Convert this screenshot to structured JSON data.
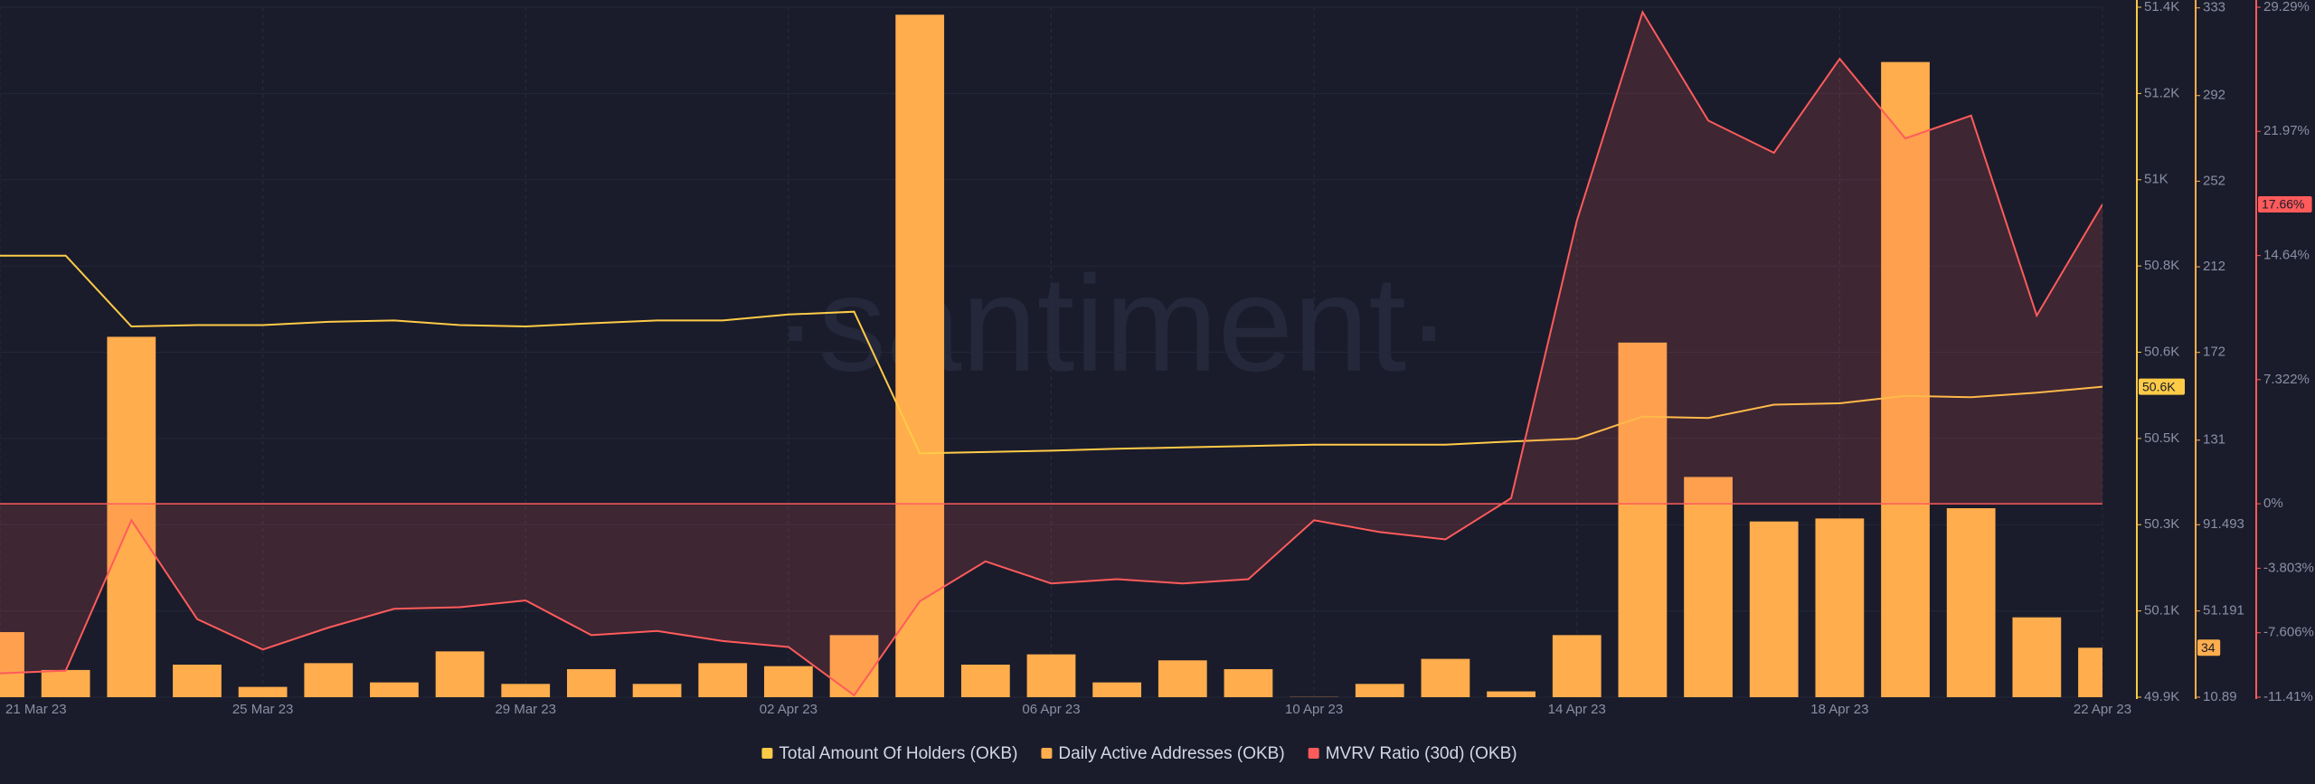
{
  "chart_data": {
    "type": "combo",
    "watermark": "·santiment·",
    "x": [
      "21 Mar 23",
      null,
      null,
      null,
      "25 Mar 23",
      null,
      null,
      null,
      "29 Mar 23",
      null,
      null,
      null,
      "02 Apr 23",
      null,
      null,
      null,
      "06 Apr 23",
      null,
      null,
      null,
      "10 Apr 23",
      null,
      null,
      null,
      "14 Apr 23",
      null,
      null,
      null,
      "18 Apr 23",
      null,
      null,
      null,
      "22 Apr 23"
    ],
    "series": [
      {
        "name": "Total Amount Of Holders (OKB)",
        "type": "line",
        "axis": "y",
        "color": "#ffcb47",
        "current_label": "50.6K",
        "values": [
          50860,
          50860,
          50706,
          50709,
          50709,
          50716,
          50719,
          50709,
          50706,
          50713,
          50719,
          50719,
          50732,
          50738,
          50430,
          50433,
          50436,
          50440,
          50443,
          50446,
          50449,
          50449,
          50449,
          50456,
          50462,
          50510,
          50507,
          50536,
          50539,
          50555,
          50552,
          50562,
          50575
        ]
      },
      {
        "name": "Daily Active Addresses (OKB)",
        "type": "bar",
        "axis": "y2",
        "color": "#ffad4d",
        "current_label": "34",
        "values": [
          41.3,
          23.6,
          179.3,
          26.1,
          15.7,
          26.8,
          17.8,
          32.3,
          17.1,
          24,
          17.1,
          26.8,
          25.4,
          39.9,
          329.8,
          26.1,
          30.9,
          17.8,
          28.1,
          24,
          11,
          17.1,
          28.8,
          13.6,
          39.9,
          176.6,
          113.8,
          93,
          94.4,
          307.7,
          99.2,
          48.2,
          34
        ]
      },
      {
        "name": "MVRV Ratio (30d) (OKB)",
        "type": "line",
        "axis": "y3",
        "color": "#ff5b5b",
        "current_label": "17.66%",
        "area": true,
        "values": [
          -10.0,
          -9.84,
          -0.97,
          -6.8,
          -8.6,
          -7.3,
          -6.2,
          -6.1,
          -5.7,
          -7.75,
          -7.5,
          -8.1,
          -8.45,
          -11.3,
          -5.75,
          -3.4,
          -4.7,
          -4.45,
          -4.7,
          -4.45,
          -0.97,
          -1.67,
          -2.1,
          0.33,
          16.7,
          29.0,
          22.6,
          20.7,
          26.25,
          21.55,
          22.9,
          11.1,
          17.66
        ]
      }
    ],
    "ylim": [
      49900,
      51400
    ],
    "yticks": [
      {
        "value": 49900,
        "label": "49.9K"
      },
      {
        "value": 50087.5,
        "label": "50.1K"
      },
      {
        "value": 50275,
        "label": "50.3K"
      },
      {
        "value": 50462.5,
        "label": "50.5K"
      },
      {
        "value": 50650,
        "label": "50.6K"
      },
      {
        "value": 50837.5,
        "label": "50.8K"
      },
      {
        "value": 51025,
        "label": "51K"
      },
      {
        "value": 51212.5,
        "label": "51.2K"
      },
      {
        "value": 51400,
        "label": "51.4K"
      }
    ],
    "y2lim": [
      10.89,
      333.3
    ],
    "y2ticks": [
      10.89,
      51.191,
      91.493,
      131,
      172,
      212,
      252,
      292,
      333
    ],
    "y3lim": [
      -11.41,
      29.29
    ],
    "y3ticks": [
      {
        "value": -11.41,
        "label": "-11.41%"
      },
      {
        "value": -7.606,
        "label": "-7.606%"
      },
      {
        "value": -3.803,
        "label": "-3.803%"
      },
      {
        "value": 0,
        "label": "0%"
      },
      {
        "value": 7.322,
        "label": "7.322%"
      },
      {
        "value": 14.64,
        "label": "14.64%"
      },
      {
        "value": 21.97,
        "label": "21.97%"
      },
      {
        "value": 29.29,
        "label": "29.29%"
      }
    ],
    "grid": true
  }
}
